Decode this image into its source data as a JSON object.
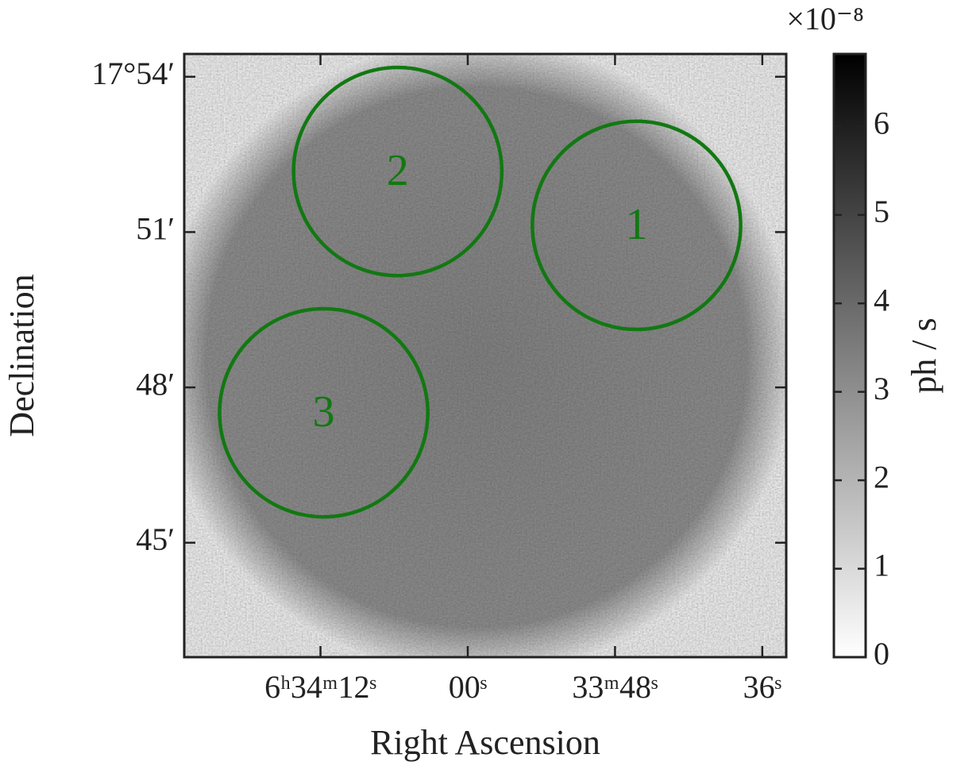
{
  "chart_data": {
    "type": "image",
    "xlabel": "Right Ascension",
    "ylabel": "Declination",
    "xlim": [
      83.1,
      34.05
    ],
    "xticks": [
      {
        "value": 72,
        "label": "6ʰ34ᵐ12ˢ"
      },
      {
        "value": 60,
        "label": "00ˢ"
      },
      {
        "value": 48,
        "label": "33ᵐ48ˢ"
      },
      {
        "value": 36,
        "label": "36ˢ"
      }
    ],
    "ylim": [
      42.79,
      54.44
    ],
    "yticks": [
      {
        "value": 54,
        "label": "17°54′"
      },
      {
        "value": 51,
        "label": "51′"
      },
      {
        "value": 48,
        "label": "48′"
      },
      {
        "value": 45,
        "label": "45′"
      }
    ],
    "colorbar": {
      "label": "ph / s",
      "exponent": "×10⁻⁸",
      "clim": [
        0,
        6.82
      ],
      "ticks": [
        0,
        1,
        2,
        3,
        4,
        5,
        6
      ]
    },
    "region_color": "#127812",
    "regions": [
      {
        "label": "1",
        "ra": 46.25,
        "dec": 51.13,
        "radius": 2.01
      },
      {
        "label": "2",
        "ra": 65.71,
        "dec": 52.17,
        "radius": 2.01
      },
      {
        "label": "3",
        "ra": 71.74,
        "dec": 47.51,
        "radius": 2.01
      }
    ]
  }
}
